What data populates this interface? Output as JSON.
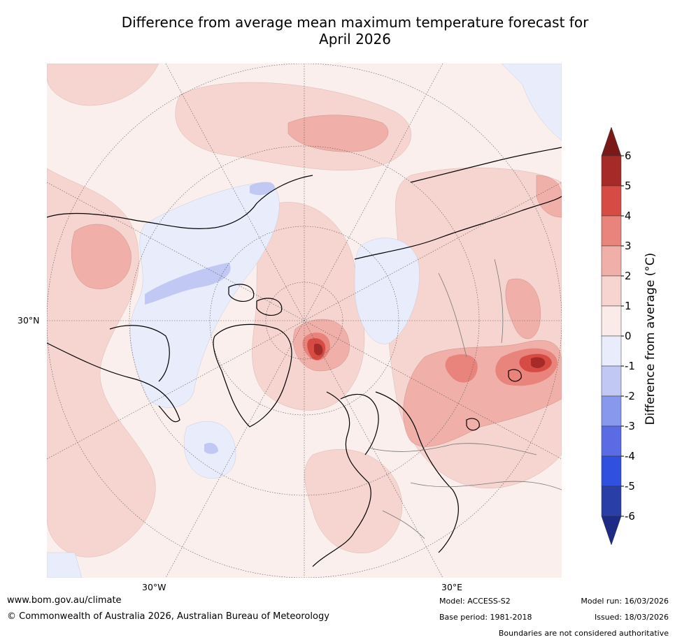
{
  "title": {
    "line1": "Difference from average mean maximum temperature forecast for",
    "line2": "April 2026"
  },
  "map": {
    "lat_label": "30°N",
    "lon_labels": [
      "30°W",
      "30°E"
    ]
  },
  "colorbar": {
    "label": "Difference from average (°C)",
    "ticks": [
      "6",
      "5",
      "4",
      "3",
      "2",
      "1",
      "0",
      "-1",
      "-2",
      "-3",
      "-4",
      "-5",
      "-6"
    ],
    "colors": {
      "above_max": "#7a1a18",
      "5_6": "#a62a27",
      "4_5": "#d64c45",
      "3_4": "#e8847c",
      "2_3": "#f0b0a9",
      "1_2": "#f6d4cf",
      "0_1": "#fbebe8",
      "-1_0": "#e8ecfb",
      "-2_-1": "#c0c8f3",
      "-3_-2": "#8898ec",
      "-4_-3": "#5a6be3",
      "-5_-4": "#3050e0",
      "-6_-5": "#2a3ea8",
      "below_min": "#1e2b86"
    }
  },
  "footer": {
    "website": "www.bom.gov.au/climate",
    "copyright": "© Commonwealth of Australia 2026, Australian Bureau of Meteorology",
    "model": "Model: ACCESS-S2",
    "base_period": "Base period: 1981-2018",
    "model_run": "Model run: 16/03/2026",
    "issued": "Issued: 18/03/2026",
    "disclaimer": "Boundaries are not considered authoritative"
  }
}
